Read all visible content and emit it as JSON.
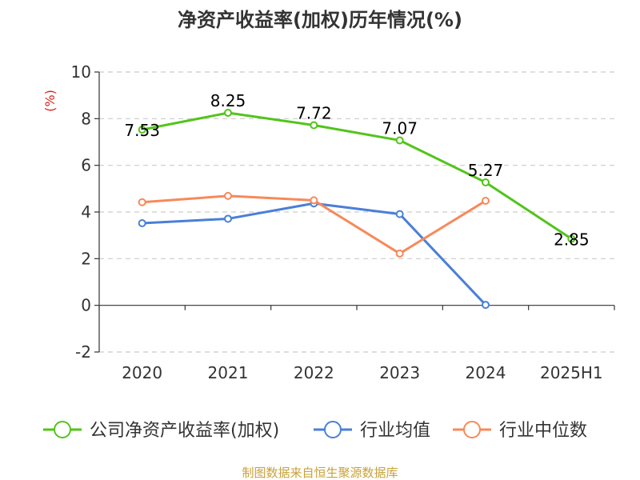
{
  "chart_data": {
    "type": "line",
    "title": "净资产收益率(加权)历年情况(%)",
    "ylabel": "(%)",
    "categories": [
      "2020",
      "2021",
      "2022",
      "2023",
      "2024",
      "2025H1"
    ],
    "ylim": [
      -2,
      10
    ],
    "yticks": [
      -2,
      0,
      2,
      4,
      6,
      8,
      10
    ],
    "grid": true,
    "legend_position": "bottom",
    "series": [
      {
        "name": "公司净资产收益率(加权)",
        "color": "#52c41a",
        "values": [
          7.53,
          8.25,
          7.72,
          7.07,
          5.27,
          2.85
        ],
        "labels": [
          "7.53",
          "8.25",
          "7.72",
          "7.07",
          "5.27",
          "2.85"
        ]
      },
      {
        "name": "行业均值",
        "color": "#4a7fd8",
        "values": [
          3.52,
          3.71,
          4.37,
          3.91,
          0.02,
          null
        ]
      },
      {
        "name": "行业中位数",
        "color": "#f7895a",
        "values": [
          4.42,
          4.69,
          4.5,
          2.22,
          4.48,
          null
        ]
      }
    ]
  },
  "colors": {
    "unit_label": "#e02020",
    "source": "#c8a13a"
  },
  "source": "制图数据来自恒生聚源数据库"
}
